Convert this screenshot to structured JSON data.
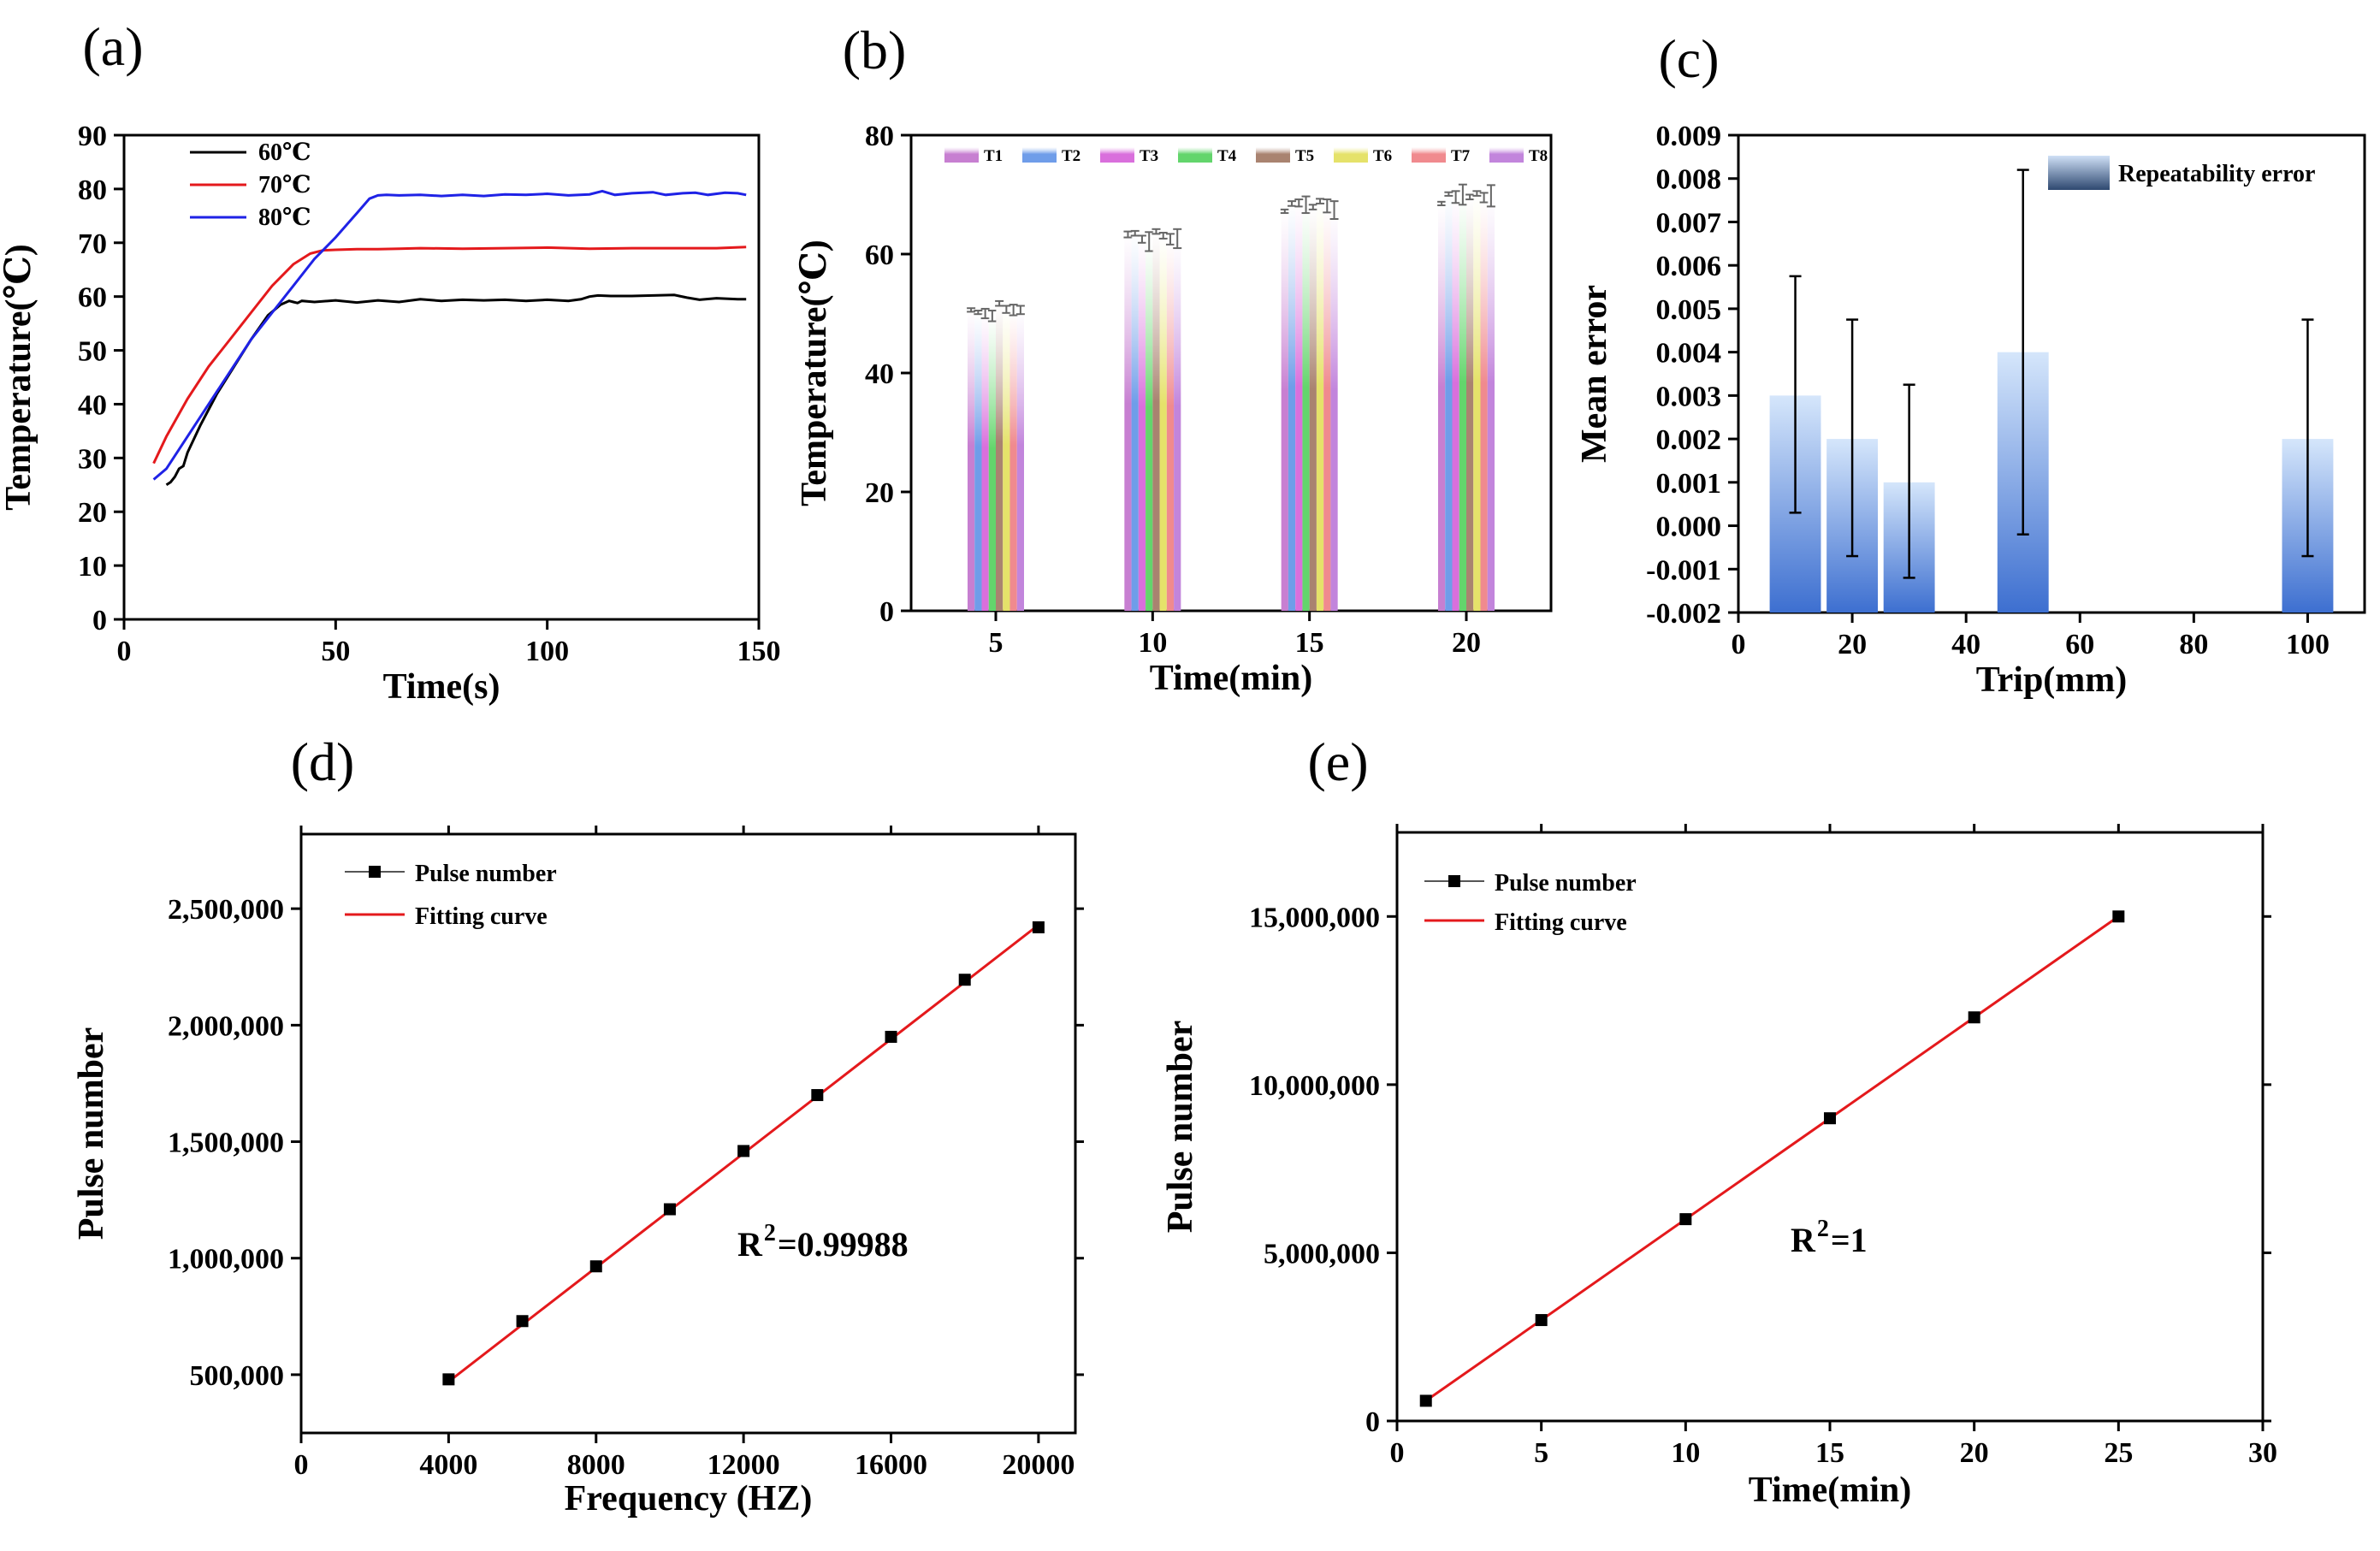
{
  "panel_labels": [
    "(a)",
    "(b)",
    "(c)",
    "(d)",
    "(e)"
  ],
  "colors": {
    "axis": "#000000",
    "fit_line": "#e4191c",
    "marker": "#000000",
    "c_bar_top": "#d5e6fb",
    "c_bar_bottom": "#3d6fd0",
    "c_legend_bottom": "#2e4870"
  },
  "chart_data": [
    {
      "id": "a",
      "type": "line",
      "xlabel": "Time(s)",
      "ylabel": "Temperature(℃)",
      "xlim": [
        0,
        150
      ],
      "ylim": [
        0,
        90
      ],
      "xticks": [
        "0",
        "50",
        "100",
        "150"
      ],
      "yticks": [
        "0",
        "10",
        "20",
        "30",
        "40",
        "50",
        "60",
        "70",
        "80",
        "90"
      ],
      "legend": "top-left",
      "series": [
        {
          "name": "60℃",
          "color": "#000000",
          "x": [
            10,
            11,
            12,
            13,
            14,
            15,
            18,
            22,
            26,
            30,
            34,
            37,
            39,
            40,
            41,
            42,
            45,
            50,
            55,
            60,
            65,
            70,
            75,
            80,
            85,
            90,
            95,
            100,
            105,
            108,
            110,
            112,
            115,
            120,
            125,
            130,
            133,
            136,
            140,
            145,
            147
          ],
          "y": [
            25,
            25.5,
            26.5,
            28,
            28.5,
            31,
            36,
            42,
            47,
            52,
            56.5,
            58.5,
            59.2,
            59.0,
            58.8,
            59.2,
            59.0,
            59.3,
            58.9,
            59.3,
            59.0,
            59.5,
            59.2,
            59.4,
            59.3,
            59.4,
            59.2,
            59.4,
            59.2,
            59.5,
            60.0,
            60.2,
            60.1,
            60.1,
            60.2,
            60.3,
            59.8,
            59.4,
            59.7,
            59.5,
            59.5
          ]
        },
        {
          "name": "70℃",
          "color": "#e4191c",
          "x": [
            7,
            10,
            15,
            20,
            25,
            30,
            35,
            40,
            44,
            47,
            50,
            55,
            60,
            65,
            70,
            80,
            90,
            100,
            110,
            120,
            130,
            140,
            147
          ],
          "y": [
            29,
            34,
            41,
            47,
            52,
            57,
            62,
            66,
            68,
            68.6,
            68.7,
            68.8,
            68.8,
            68.9,
            69.0,
            68.9,
            69.0,
            69.1,
            68.9,
            69.0,
            69.0,
            69.0,
            69.2
          ]
        },
        {
          "name": "80℃",
          "color": "#1f22e6",
          "x": [
            7,
            10,
            15,
            20,
            25,
            30,
            35,
            40,
            45,
            50,
            55,
            58,
            60,
            62,
            65,
            70,
            75,
            80,
            85,
            90,
            95,
            100,
            105,
            110,
            113,
            116,
            120,
            125,
            128,
            132,
            135,
            138,
            142,
            145,
            147
          ],
          "y": [
            26,
            28,
            34,
            40,
            46,
            52,
            57,
            62,
            67,
            71,
            75.5,
            78.2,
            78.8,
            78.9,
            78.8,
            78.9,
            78.7,
            78.9,
            78.7,
            79.0,
            78.9,
            79.1,
            78.8,
            79.0,
            79.6,
            78.9,
            79.2,
            79.4,
            78.9,
            79.2,
            79.3,
            78.9,
            79.3,
            79.2,
            78.9
          ]
        }
      ]
    },
    {
      "id": "b",
      "type": "bar",
      "xlabel": "Time(min)",
      "ylabel": "Temperature(℃)",
      "xlim": [
        2.3,
        22.7
      ],
      "ylim": [
        0,
        80
      ],
      "xticks": [
        "5",
        "10",
        "15",
        "20"
      ],
      "yticks": [
        "0",
        "20",
        "40",
        "60",
        "80"
      ],
      "legend": "top",
      "categories": [
        "5",
        "10",
        "15",
        "20"
      ],
      "series": [
        {
          "name": "T1",
          "color": "#c77fd1",
          "values": [
            50.6,
            63.3,
            67.2,
            68.5
          ],
          "errors": [
            0.3,
            0.5,
            0.3,
            0.3
          ]
        },
        {
          "name": "T2",
          "color": "#6f9de9",
          "values": [
            50.2,
            63.5,
            68.5,
            70.1
          ],
          "errors": [
            0.3,
            0.4,
            0.4,
            0.3
          ]
        },
        {
          "name": "T3",
          "color": "#d96fdc",
          "values": [
            50.0,
            62.5,
            68.6,
            69.6
          ],
          "errors": [
            0.8,
            0.6,
            0.6,
            1.0
          ]
        },
        {
          "name": "T4",
          "color": "#63d56c",
          "values": [
            49.6,
            62.1,
            68.3,
            70.0
          ],
          "errors": [
            0.9,
            1.6,
            1.4,
            1.7
          ]
        },
        {
          "name": "T5",
          "color": "#a98370",
          "values": [
            51.7,
            63.8,
            67.9,
            69.6
          ],
          "errors": [
            0.4,
            0.4,
            0.4,
            0.4
          ]
        },
        {
          "name": "T6",
          "color": "#e5e26a",
          "values": [
            50.7,
            63.1,
            68.9,
            70.2
          ],
          "errors": [
            0.6,
            0.5,
            0.4,
            0.4
          ]
        },
        {
          "name": "T7",
          "color": "#f08a8e",
          "values": [
            50.6,
            62.5,
            68.1,
            69.5
          ],
          "errors": [
            0.9,
            0.9,
            1.1,
            0.8
          ]
        },
        {
          "name": "T8",
          "color": "#c285dc",
          "values": [
            50.6,
            62.6,
            67.4,
            69.8
          ],
          "errors": [
            0.7,
            1.6,
            1.5,
            1.8
          ]
        }
      ]
    },
    {
      "id": "c",
      "type": "bar",
      "xlabel": "Trip(mm)",
      "ylabel": "Mean error",
      "xlim": [
        0,
        110
      ],
      "ylim": [
        -0.002,
        0.009
      ],
      "xticks": [
        "0",
        "20",
        "40",
        "60",
        "80",
        "100"
      ],
      "yticks": [
        "-0.002",
        "-0.001",
        "0.000",
        "0.001",
        "0.002",
        "0.003",
        "0.004",
        "0.005",
        "0.006",
        "0.007",
        "0.008",
        "0.009"
      ],
      "legend": "top-right",
      "series": [
        {
          "name": "Repeatability error",
          "x": [
            10,
            20,
            30,
            50,
            100
          ],
          "values": [
            0.003,
            0.002,
            0.001,
            0.004,
            0.002
          ],
          "err_upper": [
            0.00575,
            0.00475,
            0.00325,
            0.0082,
            0.00475
          ],
          "err_lower": [
            0.0003,
            -0.0007,
            -0.0012,
            -0.0002,
            -0.0007
          ]
        }
      ]
    },
    {
      "id": "d",
      "type": "scatter",
      "xlabel": "Frequency (HZ)",
      "ylabel": "Pulse number",
      "xlim": [
        0,
        21000
      ],
      "ylim": [
        250000,
        2820000
      ],
      "xticks": [
        "0",
        "4000",
        "8000",
        "12000",
        "16000",
        "20000"
      ],
      "yticks": [
        "500,000",
        "1,000,000",
        "1,500,000",
        "2,000,000",
        "2,500,000"
      ],
      "legend": "top-left",
      "annotation": {
        "prefix": "R",
        "sup": "2",
        "value": "=0.99988"
      },
      "series": [
        {
          "name": "Pulse number",
          "marker": "square",
          "x": [
            4000,
            6000,
            8000,
            10000,
            12000,
            14000,
            16000,
            18000,
            20000
          ],
          "y": [
            480000,
            730000,
            965000,
            1210000,
            1460000,
            1700000,
            1950000,
            2195000,
            2420000
          ]
        },
        {
          "name": "Fitting curve",
          "type": "line",
          "x": [
            4000,
            20000
          ],
          "y": [
            470000,
            2430000
          ]
        }
      ]
    },
    {
      "id": "e",
      "type": "scatter",
      "xlabel": "Time(min)",
      "ylabel": "Pulse number",
      "xlim": [
        0,
        30
      ],
      "ylim": [
        0,
        17500000
      ],
      "xticks": [
        "0",
        "5",
        "10",
        "15",
        "20",
        "25",
        "30"
      ],
      "yticks": [
        "0",
        "5,000,000",
        "10,000,000",
        "15,000,000"
      ],
      "legend": "top-left",
      "annotation": {
        "prefix": "R",
        "sup": "2",
        "value": "=1"
      },
      "series": [
        {
          "name": "Pulse number",
          "marker": "square",
          "x": [
            1,
            5,
            10,
            15,
            20,
            25
          ],
          "y": [
            600000,
            3000000,
            6000000,
            9000000,
            12000000,
            15000000
          ]
        },
        {
          "name": "Fitting curve",
          "type": "line",
          "x": [
            1,
            25
          ],
          "y": [
            600000,
            15000000
          ]
        }
      ]
    }
  ]
}
